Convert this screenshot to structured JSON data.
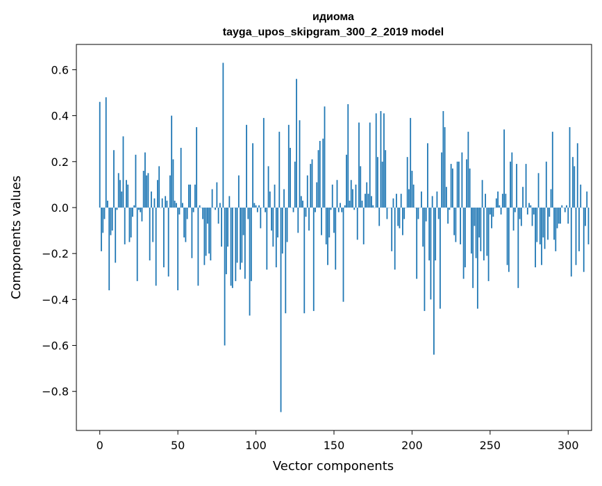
{
  "chart_data": {
    "type": "bar",
    "title_line1": "идиома",
    "title_line2": "tayga_upos_skipgram_300_2_2019 model",
    "xlabel": "Vector components",
    "ylabel": "Components values",
    "xlim": [
      -15,
      315
    ],
    "ylim": [
      -0.97,
      0.71
    ],
    "x_ticks": [
      {
        "value": 0,
        "label": "0"
      },
      {
        "value": 50,
        "label": "50"
      },
      {
        "value": 100,
        "label": "100"
      },
      {
        "value": 150,
        "label": "150"
      },
      {
        "value": 200,
        "label": "200"
      },
      {
        "value": 250,
        "label": "250"
      },
      {
        "value": 300,
        "label": "300"
      }
    ],
    "y_ticks": [
      {
        "value": 0.6,
        "label": "0.6"
      },
      {
        "value": 0.4,
        "label": "0.4"
      },
      {
        "value": 0.2,
        "label": "0.2"
      },
      {
        "value": 0.0,
        "label": "0.0"
      },
      {
        "value": -0.2,
        "label": "−0.2"
      },
      {
        "value": -0.4,
        "label": "−0.4"
      },
      {
        "value": -0.6,
        "label": "−0.6"
      },
      {
        "value": -0.8,
        "label": "−0.8"
      }
    ],
    "bar_color": "#1f77b4",
    "grid": false,
    "legend": "none",
    "values": [
      0.46,
      -0.19,
      -0.11,
      -0.05,
      0.48,
      0.03,
      -0.36,
      -0.12,
      -0.1,
      0.25,
      -0.24,
      -0.01,
      0.15,
      0.12,
      0.07,
      0.31,
      -0.16,
      0.12,
      0.1,
      -0.15,
      -0.13,
      -0.04,
      0.01,
      0.23,
      -0.32,
      -0.01,
      -0.02,
      -0.06,
      0.16,
      0.24,
      0.14,
      0.15,
      -0.23,
      0.07,
      -0.15,
      0.04,
      -0.34,
      0.12,
      0.18,
      0.0,
      0.04,
      -0.26,
      0.05,
      0.03,
      -0.3,
      0.14,
      0.4,
      0.21,
      0.03,
      0.02,
      -0.36,
      -0.03,
      0.26,
      0.02,
      -0.13,
      -0.15,
      -0.05,
      0.1,
      0.1,
      -0.22,
      -0.02,
      0.1,
      0.35,
      -0.34,
      0.01,
      0.0,
      -0.05,
      -0.25,
      -0.21,
      -0.07,
      -0.2,
      -0.23,
      0.08,
      0.0,
      -0.01,
      0.11,
      -0.07,
      0.02,
      -0.17,
      0.63,
      -0.6,
      -0.29,
      -0.17,
      0.05,
      -0.34,
      -0.35,
      0.0,
      -0.32,
      -0.24,
      0.14,
      -0.27,
      -0.24,
      -0.12,
      -0.31,
      0.36,
      -0.05,
      -0.47,
      -0.32,
      0.28,
      0.02,
      0.01,
      -0.02,
      0.01,
      -0.09,
      0.0,
      0.39,
      -0.02,
      -0.27,
      0.18,
      0.07,
      -0.1,
      -0.17,
      0.1,
      -0.26,
      -0.13,
      0.33,
      -0.89,
      -0.2,
      0.08,
      -0.46,
      -0.15,
      0.36,
      0.26,
      0.0,
      -0.02,
      0.2,
      0.56,
      -0.11,
      0.38,
      0.05,
      0.03,
      -0.46,
      -0.04,
      0.14,
      -0.1,
      0.19,
      0.21,
      -0.45,
      -0.02,
      0.11,
      0.25,
      0.29,
      -0.12,
      0.3,
      0.44,
      -0.16,
      -0.25,
      -0.13,
      -0.01,
      0.1,
      -0.11,
      -0.27,
      0.12,
      -0.02,
      0.02,
      -0.02,
      -0.41,
      0.01,
      0.23,
      0.45,
      0.03,
      0.12,
      0.08,
      -0.01,
      0.1,
      -0.14,
      0.37,
      0.18,
      0.03,
      -0.16,
      0.06,
      0.11,
      0.06,
      0.37,
      0.05,
      0.01,
      0.0,
      0.41,
      0.22,
      -0.08,
      0.42,
      0.2,
      0.41,
      0.25,
      -0.05,
      0.0,
      0.0,
      -0.19,
      0.04,
      -0.27,
      0.06,
      -0.08,
      -0.09,
      0.06,
      -0.12,
      -0.05,
      0.0,
      0.22,
      0.08,
      0.39,
      0.16,
      0.1,
      0.0,
      -0.31,
      -0.05,
      0.0,
      0.07,
      -0.17,
      -0.45,
      -0.06,
      0.28,
      -0.23,
      -0.4,
      0.05,
      -0.64,
      -0.23,
      0.07,
      -0.05,
      -0.44,
      0.24,
      0.42,
      0.35,
      0.09,
      -0.07,
      -0.01,
      0.19,
      0.17,
      -0.12,
      -0.15,
      0.2,
      0.2,
      -0.16,
      0.24,
      -0.31,
      -0.26,
      0.21,
      0.33,
      0.17,
      -0.2,
      -0.35,
      -0.08,
      -0.22,
      -0.44,
      -0.13,
      -0.19,
      0.12,
      -0.23,
      0.06,
      -0.21,
      -0.32,
      -0.03,
      -0.09,
      -0.04,
      0.0,
      0.04,
      0.07,
      0.01,
      -0.03,
      0.06,
      0.34,
      0.06,
      -0.25,
      -0.28,
      0.2,
      0.24,
      -0.1,
      -0.02,
      0.19,
      -0.35,
      -0.05,
      -0.08,
      0.09,
      0.0,
      0.19,
      -0.03,
      0.02,
      0.01,
      -0.08,
      -0.03,
      -0.26,
      -0.15,
      0.15,
      -0.16,
      -0.25,
      -0.13,
      -0.18,
      0.2,
      -0.14,
      -0.04,
      0.08,
      0.33,
      -0.14,
      -0.19,
      -0.09,
      -0.07,
      -0.07,
      0.01,
      0.0,
      -0.02,
      0.01,
      -0.07,
      0.35,
      -0.3,
      0.22,
      0.18,
      -0.25,
      0.28,
      -0.19,
      0.1,
      0.0,
      -0.28,
      -0.08,
      0.07,
      -0.16
    ]
  }
}
